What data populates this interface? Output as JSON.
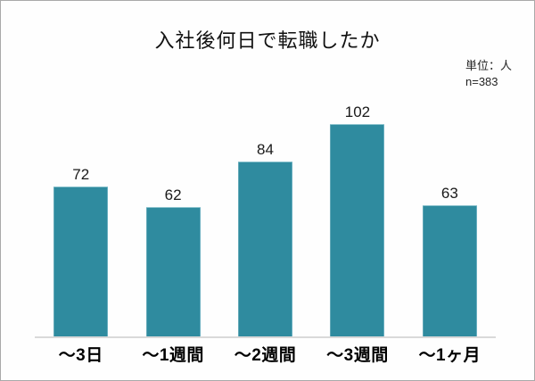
{
  "chart_data": {
    "type": "bar",
    "title": "入社後何日で転職したか",
    "unit_label": "単位：人",
    "sample_label": "n=383",
    "categories": [
      "～3日",
      "～1週間",
      "～2週間",
      "～3週間",
      "～1ヶ月"
    ],
    "values": [
      72,
      62,
      84,
      102,
      63
    ],
    "value_labels_shown": true,
    "xlabel": "",
    "ylabel": "",
    "ylim": [
      0,
      110
    ],
    "grid": false,
    "legend": "none"
  },
  "colors": {
    "bar": "#2f8b9f",
    "axis_line": "#d9d9d9",
    "text": "#1a1a1a",
    "background": "#fefefe"
  }
}
